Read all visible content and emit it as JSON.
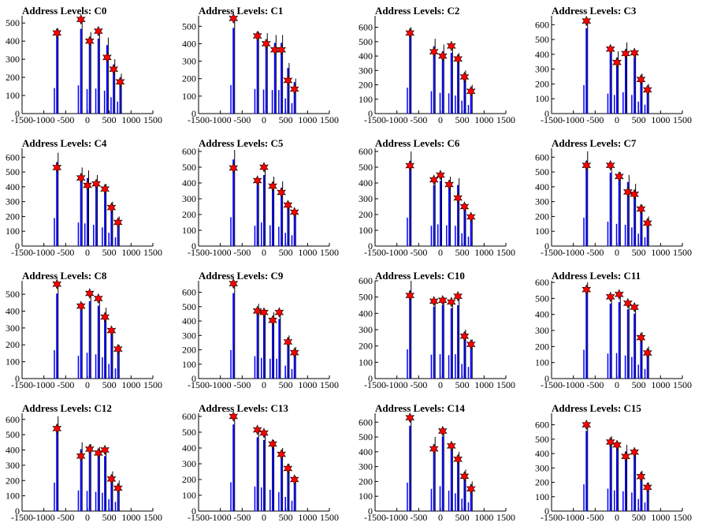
{
  "chart_data": [
    {
      "type": "bar",
      "title": "Address Levels: C0",
      "xlim": [
        -1500,
        1500
      ],
      "ylim": [
        0,
        540
      ],
      "yticks": [
        0,
        100,
        200,
        300,
        400,
        500
      ],
      "xticks": [
        -1500,
        -1000,
        -500,
        0,
        500,
        1000,
        1500
      ],
      "markers": {
        "x": [
          -700,
          -150,
          50,
          250,
          450,
          600,
          750
        ],
        "y": [
          445,
          520,
          400,
          455,
          310,
          245,
          175
        ]
      },
      "bars": {
        "x": [
          -700,
          -150,
          50,
          250,
          450,
          600,
          750
        ],
        "y": [
          470,
          520,
          450,
          460,
          420,
          300,
          220
        ]
      }
    },
    {
      "type": "bar",
      "title": "Address Levels: C1",
      "xlim": [
        -1500,
        1500
      ],
      "ylim": [
        0,
        560
      ],
      "yticks": [
        0,
        100,
        200,
        300,
        400,
        500
      ],
      "xticks": [
        -1500,
        -1000,
        -500,
        0,
        500,
        1000,
        1500
      ],
      "markers": {
        "x": [
          -700,
          -150,
          50,
          250,
          400,
          550,
          700
        ],
        "y": [
          545,
          445,
          400,
          365,
          365,
          190,
          140
        ]
      },
      "bars": {
        "x": [
          -700,
          -150,
          50,
          250,
          400,
          550,
          700
        ],
        "y": [
          545,
          470,
          460,
          450,
          450,
          290,
          200
        ]
      }
    },
    {
      "type": "bar",
      "title": "Address Levels: C2",
      "xlim": [
        -1500,
        1500
      ],
      "ylim": [
        0,
        680
      ],
      "yticks": [
        0,
        100,
        200,
        300,
        400,
        500,
        600
      ],
      "xticks": [
        -1500,
        -1000,
        -500,
        0,
        500,
        1000,
        1500
      ],
      "markers": {
        "x": [
          -700,
          -150,
          50,
          250,
          400,
          550,
          700
        ],
        "y": [
          560,
          430,
          400,
          470,
          380,
          255,
          155
        ]
      },
      "bars": {
        "x": [
          -700,
          -150,
          50,
          250,
          400,
          550,
          700
        ],
        "y": [
          600,
          520,
          480,
          470,
          420,
          300,
          200
        ]
      }
    },
    {
      "type": "bar",
      "title": "Address Levels: C3",
      "xlim": [
        -1500,
        1500
      ],
      "ylim": [
        0,
        660
      ],
      "yticks": [
        0,
        100,
        200,
        300,
        400,
        500,
        600
      ],
      "xticks": [
        -1500,
        -1000,
        -500,
        0,
        500,
        1000,
        1500
      ],
      "markers": {
        "x": [
          -700,
          -150,
          0,
          200,
          400,
          550,
          700
        ],
        "y": [
          625,
          435,
          345,
          405,
          410,
          230,
          160
        ]
      },
      "bars": {
        "x": [
          -700,
          -150,
          0,
          200,
          400,
          550,
          700
        ],
        "y": [
          640,
          450,
          420,
          480,
          420,
          270,
          200
        ]
      }
    },
    {
      "type": "bar",
      "title": "Address Levels: C4",
      "xlim": [
        -1500,
        1500
      ],
      "ylim": [
        0,
        660
      ],
      "yticks": [
        0,
        100,
        200,
        300,
        400,
        500,
        600
      ],
      "xticks": [
        -1500,
        -1000,
        -500,
        0,
        500,
        1000,
        1500
      ],
      "markers": {
        "x": [
          -700,
          -150,
          0,
          200,
          400,
          550,
          700
        ],
        "y": [
          530,
          460,
          410,
          420,
          385,
          260,
          160
        ]
      },
      "bars": {
        "x": [
          -700,
          -150,
          0,
          200,
          400,
          550,
          700
        ],
        "y": [
          630,
          530,
          510,
          480,
          420,
          300,
          200
        ]
      }
    },
    {
      "type": "bar",
      "title": "Address Levels: C5",
      "xlim": [
        -1500,
        1500
      ],
      "ylim": [
        0,
        620
      ],
      "yticks": [
        0,
        100,
        200,
        300,
        400,
        500,
        600
      ],
      "xticks": [
        -1500,
        -1000,
        -500,
        0,
        500,
        1000,
        1500
      ],
      "markers": {
        "x": [
          -700,
          -150,
          0,
          200,
          400,
          550,
          700
        ],
        "y": [
          495,
          415,
          500,
          380,
          340,
          260,
          215
        ]
      },
      "bars": {
        "x": [
          -700,
          -150,
          0,
          200,
          400,
          550,
          700
        ],
        "y": [
          610,
          430,
          500,
          440,
          410,
          280,
          230
        ]
      }
    },
    {
      "type": "bar",
      "title": "Address Levels: C6",
      "xlim": [
        -1500,
        1500
      ],
      "ylim": [
        0,
        620
      ],
      "yticks": [
        0,
        100,
        200,
        300,
        400,
        500,
        600
      ],
      "xticks": [
        -1500,
        -1000,
        -500,
        0,
        500,
        1000,
        1500
      ],
      "markers": {
        "x": [
          -700,
          -150,
          0,
          200,
          400,
          550,
          700
        ],
        "y": [
          510,
          420,
          450,
          390,
          305,
          250,
          185
        ]
      },
      "bars": {
        "x": [
          -700,
          -150,
          0,
          200,
          400,
          550,
          700
        ],
        "y": [
          600,
          430,
          460,
          440,
          430,
          270,
          200
        ]
      }
    },
    {
      "type": "bar",
      "title": "Address Levels: C7",
      "xlim": [
        -1500,
        1500
      ],
      "ylim": [
        0,
        660
      ],
      "yticks": [
        0,
        100,
        200,
        300,
        400,
        500,
        600
      ],
      "xticks": [
        -1500,
        -1000,
        -500,
        0,
        500,
        1000,
        1500
      ],
      "markers": {
        "x": [
          -700,
          -150,
          50,
          250,
          400,
          550,
          700
        ],
        "y": [
          545,
          545,
          470,
          365,
          350,
          250,
          155
        ]
      },
      "bars": {
        "x": [
          -700,
          -150,
          50,
          250,
          400,
          550,
          700
        ],
        "y": [
          640,
          550,
          500,
          480,
          420,
          280,
          200
        ]
      }
    },
    {
      "type": "bar",
      "title": "Address Levels: C8",
      "xlim": [
        -1500,
        1500
      ],
      "ylim": [
        0,
        580
      ],
      "yticks": [
        0,
        100,
        200,
        300,
        400,
        500
      ],
      "xticks": [
        -1500,
        -1000,
        -500,
        0,
        500,
        1000,
        1500
      ],
      "markers": {
        "x": [
          -700,
          -150,
          50,
          250,
          400,
          550,
          700
        ],
        "y": [
          560,
          430,
          505,
          475,
          365,
          285,
          175
        ]
      },
      "bars": {
        "x": [
          -700,
          -150,
          50,
          250,
          400,
          550,
          700
        ],
        "y": [
          560,
          450,
          510,
          480,
          420,
          290,
          200
        ]
      }
    },
    {
      "type": "bar",
      "title": "Address Levels: C9",
      "xlim": [
        -1500,
        1500
      ],
      "ylim": [
        0,
        680
      ],
      "yticks": [
        0,
        100,
        200,
        300,
        400,
        500,
        600
      ],
      "xticks": [
        -1500,
        -1000,
        -500,
        0,
        500,
        1000,
        1500
      ],
      "markers": {
        "x": [
          -700,
          -150,
          0,
          200,
          350,
          550,
          700
        ],
        "y": [
          660,
          470,
          460,
          405,
          460,
          255,
          180
        ]
      },
      "bars": {
        "x": [
          -700,
          -150,
          0,
          200,
          350,
          550,
          700
        ],
        "y": [
          660,
          520,
          480,
          460,
          460,
          300,
          220
        ]
      }
    },
    {
      "type": "bar",
      "title": "Address Levels: C10",
      "xlim": [
        -1500,
        1500
      ],
      "ylim": [
        0,
        600
      ],
      "yticks": [
        0,
        100,
        200,
        300,
        400,
        500,
        600
      ],
      "xticks": [
        -1500,
        -1000,
        -500,
        0,
        500,
        1000,
        1500
      ],
      "markers": {
        "x": [
          -700,
          -150,
          50,
          250,
          400,
          550,
          700
        ],
        "y": [
          510,
          475,
          480,
          470,
          505,
          260,
          210
        ]
      },
      "bars": {
        "x": [
          -700,
          -150,
          50,
          250,
          400,
          550,
          700
        ],
        "y": [
          600,
          490,
          500,
          480,
          500,
          300,
          240
        ]
      }
    },
    {
      "type": "bar",
      "title": "Address Levels: C11",
      "xlim": [
        -1500,
        1500
      ],
      "ylim": [
        0,
        610
      ],
      "yticks": [
        0,
        100,
        200,
        300,
        400,
        500,
        600
      ],
      "xticks": [
        -1500,
        -1000,
        -500,
        0,
        500,
        1000,
        1500
      ],
      "markers": {
        "x": [
          -700,
          -150,
          50,
          250,
          400,
          550,
          700
        ],
        "y": [
          555,
          510,
          525,
          470,
          445,
          255,
          160
        ]
      },
      "bars": {
        "x": [
          -700,
          -150,
          50,
          250,
          400,
          550,
          700
        ],
        "y": [
          600,
          520,
          530,
          480,
          450,
          290,
          200
        ]
      }
    },
    {
      "type": "bar",
      "title": "Address Levels: C12",
      "xlim": [
        -1500,
        1500
      ],
      "ylim": [
        0,
        640
      ],
      "yticks": [
        0,
        100,
        200,
        300,
        400,
        500,
        600
      ],
      "xticks": [
        -1500,
        -1000,
        -500,
        0,
        500,
        1000,
        1500
      ],
      "markers": {
        "x": [
          -700,
          -150,
          50,
          250,
          400,
          550,
          700
        ],
        "y": [
          540,
          360,
          405,
          380,
          400,
          210,
          150
        ]
      },
      "bars": {
        "x": [
          -700,
          -150,
          50,
          250,
          400,
          550,
          700
        ],
        "y": [
          620,
          450,
          440,
          420,
          400,
          260,
          200
        ]
      }
    },
    {
      "type": "bar",
      "title": "Address Levels: C13",
      "xlim": [
        -1500,
        1500
      ],
      "ylim": [
        0,
        620
      ],
      "yticks": [
        0,
        100,
        200,
        300,
        400,
        500,
        600
      ],
      "xticks": [
        -1500,
        -1000,
        -500,
        0,
        500,
        1000,
        1500
      ],
      "markers": {
        "x": [
          -700,
          -150,
          0,
          200,
          400,
          550,
          700
        ],
        "y": [
          600,
          515,
          495,
          425,
          360,
          270,
          200
        ]
      },
      "bars": {
        "x": [
          -700,
          -150,
          0,
          200,
          400,
          550,
          700
        ],
        "y": [
          610,
          520,
          500,
          450,
          400,
          300,
          220
        ]
      }
    },
    {
      "type": "bar",
      "title": "Address Levels: C14",
      "xlim": [
        -1500,
        1500
      ],
      "ylim": [
        0,
        660
      ],
      "yticks": [
        0,
        100,
        200,
        300,
        400,
        500,
        600
      ],
      "xticks": [
        -1500,
        -1000,
        -500,
        0,
        500,
        1000,
        1500
      ],
      "markers": {
        "x": [
          -700,
          -150,
          50,
          250,
          400,
          550,
          700
        ],
        "y": [
          630,
          420,
          540,
          440,
          350,
          235,
          150
        ]
      },
      "bars": {
        "x": [
          -700,
          -150,
          50,
          250,
          400,
          550,
          700
        ],
        "y": [
          640,
          500,
          560,
          460,
          400,
          280,
          200
        ]
      }
    },
    {
      "type": "bar",
      "title": "Address Levels: C15",
      "xlim": [
        -1500,
        1500
      ],
      "ylim": [
        0,
        680
      ],
      "yticks": [
        0,
        100,
        200,
        300,
        400,
        500,
        600
      ],
      "xticks": [
        -1500,
        -1000,
        -500,
        0,
        500,
        1000,
        1500
      ],
      "markers": {
        "x": [
          -700,
          -150,
          0,
          200,
          400,
          550,
          700
        ],
        "y": [
          600,
          480,
          460,
          380,
          410,
          240,
          165
        ]
      },
      "bars": {
        "x": [
          -700,
          -150,
          0,
          200,
          400,
          550,
          700
        ],
        "y": [
          620,
          520,
          480,
          460,
          430,
          280,
          200
        ]
      }
    }
  ],
  "colors": {
    "bar": "#0000ff",
    "marker": "#ff0000",
    "marker_outline": "#000000",
    "axis": "#000000"
  }
}
